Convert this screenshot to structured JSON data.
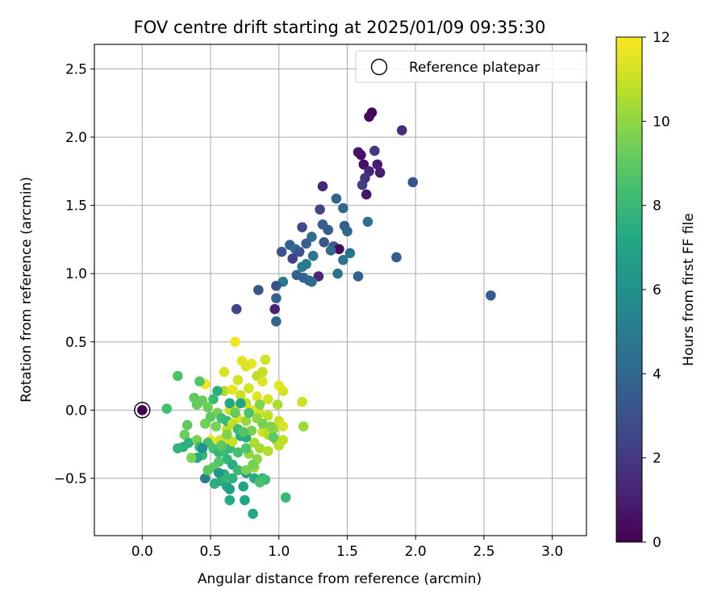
{
  "chart_data": {
    "type": "scatter",
    "title": "FOV centre drift starting at 2025/01/09 09:35:30",
    "xlabel": "Angular distance from reference (arcmin)",
    "ylabel": "Rotation from reference (arcmin)",
    "xlim": [
      -0.35,
      3.25
    ],
    "ylim": [
      -0.92,
      2.68
    ],
    "xticks": [
      0.0,
      0.5,
      1.0,
      1.5,
      2.0,
      2.5,
      3.0
    ],
    "xtick_labels": [
      "0.0",
      "0.5",
      "1.0",
      "1.5",
      "2.0",
      "2.5",
      "3.0"
    ],
    "yticks": [
      -0.5,
      0.0,
      0.5,
      1.0,
      1.5,
      2.0,
      2.5
    ],
    "ytick_labels": [
      "−0.5",
      "0.0",
      "0.5",
      "1.0",
      "1.5",
      "2.0",
      "2.5"
    ],
    "grid": true,
    "legend": {
      "placement": "top-right",
      "entries": [
        "Reference platepar"
      ]
    },
    "reference_point": {
      "x": 0.0,
      "y": 0.0,
      "value": 0
    },
    "colorbar": {
      "label": "Hours from first FF file",
      "colormap": "viridis",
      "range": [
        0,
        12
      ],
      "ticks": [
        0,
        2,
        4,
        6,
        8,
        10,
        12
      ],
      "tick_labels": [
        "0",
        "2",
        "4",
        "6",
        "8",
        "10",
        "12"
      ]
    },
    "points": [
      [
        1.68,
        2.18,
        0.2
      ],
      [
        1.66,
        2.15,
        0.3
      ],
      [
        1.9,
        2.05,
        1.5
      ],
      [
        1.58,
        1.89,
        0.8
      ],
      [
        1.6,
        1.87,
        0.6
      ],
      [
        1.7,
        1.9,
        2.0
      ],
      [
        1.62,
        1.8,
        0.5
      ],
      [
        1.72,
        1.8,
        1.0
      ],
      [
        1.66,
        1.75,
        1.2
      ],
      [
        1.74,
        1.74,
        0.9
      ],
      [
        1.63,
        1.7,
        1.8
      ],
      [
        1.61,
        1.65,
        2.2
      ],
      [
        1.64,
        1.58,
        0.7
      ],
      [
        1.98,
        1.67,
        3.2
      ],
      [
        1.32,
        1.64,
        1.3
      ],
      [
        1.42,
        1.55,
        3.8
      ],
      [
        1.3,
        1.47,
        2.5
      ],
      [
        1.47,
        1.48,
        4.0
      ],
      [
        1.65,
        1.38,
        4.4
      ],
      [
        1.32,
        1.36,
        3.5
      ],
      [
        1.17,
        1.34,
        2.7
      ],
      [
        1.48,
        1.35,
        3.6
      ],
      [
        1.36,
        1.32,
        3.4
      ],
      [
        1.5,
        1.31,
        3.9
      ],
      [
        1.24,
        1.27,
        4.2
      ],
      [
        1.33,
        1.23,
        3.3
      ],
      [
        1.4,
        1.2,
        3.2
      ],
      [
        1.44,
        1.18,
        0.3
      ],
      [
        1.38,
        1.17,
        4.1
      ],
      [
        1.2,
        1.22,
        3.7
      ],
      [
        1.08,
        1.21,
        3.6
      ],
      [
        1.12,
        1.18,
        4.3
      ],
      [
        1.15,
        1.16,
        3.0
      ],
      [
        1.02,
        1.16,
        3.1
      ],
      [
        1.1,
        1.11,
        2.3
      ],
      [
        1.25,
        1.13,
        4.6
      ],
      [
        1.47,
        1.1,
        4.5
      ],
      [
        1.52,
        1.15,
        4.7
      ],
      [
        1.2,
        1.07,
        4.8
      ],
      [
        1.17,
        1.05,
        4.9
      ],
      [
        1.13,
        0.99,
        3.8
      ],
      [
        1.18,
        0.97,
        3.9
      ],
      [
        1.43,
        1.0,
        4.6
      ],
      [
        1.58,
        0.98,
        3.7
      ],
      [
        1.29,
        0.98,
        1.4
      ],
      [
        1.22,
        0.95,
        4.0
      ],
      [
        1.24,
        0.94,
        4.2
      ],
      [
        1.03,
        0.94,
        4.8
      ],
      [
        0.98,
        0.91,
        3.0
      ],
      [
        0.85,
        0.88,
        3.2
      ],
      [
        0.98,
        0.82,
        3.6
      ],
      [
        0.97,
        0.74,
        1.2
      ],
      [
        0.69,
        0.74,
        2.5
      ],
      [
        1.86,
        1.12,
        3.5
      ],
      [
        2.55,
        0.84,
        3.4
      ],
      [
        0.98,
        0.65,
        3.9
      ],
      [
        0.68,
        0.5,
        11.7
      ],
      [
        0.73,
        0.36,
        11.5
      ],
      [
        0.8,
        0.34,
        11.6
      ],
      [
        0.76,
        0.32,
        11.4
      ],
      [
        0.9,
        0.37,
        11.2
      ],
      [
        0.6,
        0.28,
        11.3
      ],
      [
        0.88,
        0.28,
        11.0
      ],
      [
        0.84,
        0.25,
        10.8
      ],
      [
        0.7,
        0.22,
        11.2
      ],
      [
        0.88,
        0.21,
        11.4
      ],
      [
        1.0,
        0.18,
        11.5
      ],
      [
        0.46,
        0.19,
        11.8
      ],
      [
        1.03,
        0.14,
        11.3
      ],
      [
        0.6,
        0.14,
        10.6
      ],
      [
        0.66,
        0.15,
        11.6
      ],
      [
        0.78,
        0.16,
        11.2
      ],
      [
        0.72,
        0.11,
        11.0
      ],
      [
        0.84,
        0.1,
        11.5
      ],
      [
        0.92,
        0.08,
        11.2
      ],
      [
        0.76,
        0.05,
        10.9
      ],
      [
        1.17,
        0.06,
        11.1
      ],
      [
        0.99,
        0.04,
        10.5
      ],
      [
        0.68,
        0.02,
        11.3
      ],
      [
        0.64,
        0.0,
        11.0
      ],
      [
        0.8,
        0.0,
        11.5
      ],
      [
        0.86,
        -0.02,
        11.2
      ],
      [
        0.92,
        -0.04,
        10.8
      ],
      [
        0.7,
        -0.06,
        11.4
      ],
      [
        1.0,
        -0.08,
        11.0
      ],
      [
        1.03,
        -0.12,
        11.3
      ],
      [
        0.62,
        -0.14,
        10.8
      ],
      [
        0.88,
        -0.16,
        11.1
      ],
      [
        0.92,
        -0.18,
        10.6
      ],
      [
        0.98,
        -0.22,
        10.3
      ],
      [
        0.82,
        -0.24,
        10.5
      ],
      [
        0.62,
        -0.22,
        11.5
      ],
      [
        0.5,
        -0.22,
        11.7
      ],
      [
        0.78,
        -0.32,
        10.0
      ],
      [
        0.84,
        -0.36,
        9.9
      ],
      [
        0.82,
        -0.42,
        10.2
      ],
      [
        0.86,
        -0.28,
        10.4
      ],
      [
        0.92,
        -0.3,
        10.6
      ],
      [
        1.03,
        -0.22,
        10.9
      ],
      [
        1.18,
        -0.12,
        10.2
      ],
      [
        0.96,
        -0.14,
        10.1
      ],
      [
        0.26,
        0.25,
        8.6
      ],
      [
        0.18,
        0.01,
        8.4
      ],
      [
        0.42,
        0.21,
        8.8
      ],
      [
        0.38,
        0.09,
        9.0
      ],
      [
        0.44,
        0.07,
        9.2
      ],
      [
        0.4,
        0.04,
        9.1
      ],
      [
        0.55,
        0.14,
        7.5
      ],
      [
        0.52,
        0.08,
        8.2
      ],
      [
        0.48,
        0.02,
        9.3
      ],
      [
        0.55,
        -0.02,
        9.6
      ],
      [
        0.5,
        -0.05,
        9.0
      ],
      [
        0.58,
        -0.06,
        8.3
      ],
      [
        0.62,
        -0.08,
        8.0
      ],
      [
        0.46,
        -0.1,
        9.4
      ],
      [
        0.54,
        -0.12,
        9.5
      ],
      [
        0.33,
        -0.11,
        9.0
      ],
      [
        0.31,
        -0.18,
        9.3
      ],
      [
        0.34,
        -0.24,
        7.5
      ],
      [
        0.3,
        -0.27,
        7.6
      ],
      [
        0.26,
        -0.28,
        7.8
      ],
      [
        0.4,
        -0.22,
        9.5
      ],
      [
        0.42,
        -0.27,
        8.1
      ],
      [
        0.48,
        -0.24,
        8.3
      ],
      [
        0.52,
        -0.28,
        8.5
      ],
      [
        0.44,
        -0.33,
        8.0
      ],
      [
        0.4,
        -0.35,
        7.1
      ],
      [
        0.36,
        -0.35,
        9.6
      ],
      [
        0.56,
        -0.31,
        7.9
      ],
      [
        0.6,
        -0.3,
        8.2
      ],
      [
        0.64,
        -0.28,
        8.0
      ],
      [
        0.7,
        -0.31,
        8.4
      ],
      [
        0.76,
        -0.28,
        8.6
      ],
      [
        0.62,
        -0.36,
        7.8
      ],
      [
        0.56,
        -0.38,
        8.7
      ],
      [
        0.52,
        -0.42,
        9.0
      ],
      [
        0.66,
        -0.4,
        7.5
      ],
      [
        0.7,
        -0.44,
        8.1
      ],
      [
        0.6,
        -0.47,
        7.6
      ],
      [
        0.46,
        -0.5,
        5.2
      ],
      [
        0.53,
        -0.54,
        7.5
      ],
      [
        0.58,
        -0.52,
        7.4
      ],
      [
        0.62,
        -0.56,
        7.2
      ],
      [
        0.64,
        -0.58,
        6.8
      ],
      [
        0.74,
        -0.56,
        7.0
      ],
      [
        0.76,
        -0.46,
        6.2
      ],
      [
        0.82,
        -0.5,
        7.4
      ],
      [
        0.88,
        -0.5,
        7.7
      ],
      [
        0.9,
        -0.51,
        8.2
      ],
      [
        0.86,
        -0.53,
        8.5
      ],
      [
        0.64,
        -0.66,
        7.3
      ],
      [
        0.75,
        -0.66,
        7.1
      ],
      [
        0.81,
        -0.76,
        7.2
      ],
      [
        1.05,
        -0.64,
        8.0
      ],
      [
        0.76,
        -0.44,
        9.6
      ],
      [
        0.81,
        -0.4,
        9.5
      ],
      [
        0.66,
        -0.5,
        7.7
      ],
      [
        0.6,
        -0.49,
        7.9
      ],
      [
        0.56,
        -0.46,
        6.4
      ],
      [
        0.48,
        -0.44,
        8.9
      ],
      [
        0.44,
        -0.28,
        6.0
      ],
      [
        0.57,
        -0.22,
        11.2
      ],
      [
        0.66,
        -0.23,
        11.0
      ],
      [
        0.72,
        -0.19,
        7.4
      ],
      [
        0.76,
        -0.2,
        7.3
      ],
      [
        0.8,
        -0.15,
        9.6
      ],
      [
        0.66,
        -0.1,
        10.9
      ],
      [
        0.7,
        -0.14,
        8.1
      ],
      [
        0.74,
        -0.16,
        8.8
      ],
      [
        0.62,
        -0.18,
        9.7
      ],
      [
        0.58,
        -0.26,
        8.9
      ],
      [
        0.68,
        -0.02,
        9.1
      ],
      [
        0.76,
        -0.08,
        10.2
      ],
      [
        0.84,
        -0.06,
        10.0
      ],
      [
        0.88,
        -0.1,
        9.5
      ],
      [
        0.94,
        -0.12,
        9.8
      ],
      [
        0.96,
        -0.2,
        9.0
      ],
      [
        0.72,
        0.05,
        7.0
      ],
      [
        0.78,
        -0.02,
        8.6
      ],
      [
        0.64,
        0.05,
        7.2
      ],
      [
        0.86,
        0.04,
        9.8
      ],
      [
        1.0,
        -0.26,
        10.8
      ]
    ]
  }
}
